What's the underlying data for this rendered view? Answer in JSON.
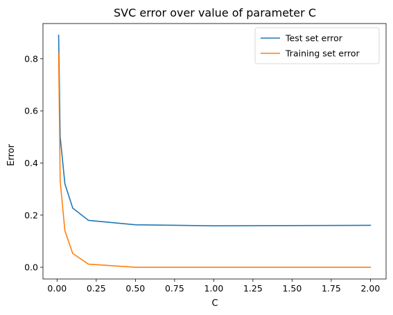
{
  "chart_data": {
    "type": "line",
    "title": "SVC error over value of parameter C",
    "xlabel": "C",
    "ylabel": "Error",
    "xlim": [
      -0.09,
      2.1
    ],
    "ylim": [
      -0.045,
      0.935
    ],
    "x_ticks": [
      {
        "value": 0.0,
        "label": "0.00"
      },
      {
        "value": 0.25,
        "label": "0.25"
      },
      {
        "value": 0.5,
        "label": "0.50"
      },
      {
        "value": 0.75,
        "label": "0.75"
      },
      {
        "value": 1.0,
        "label": "1.00"
      },
      {
        "value": 1.25,
        "label": "1.25"
      },
      {
        "value": 1.5,
        "label": "1.50"
      },
      {
        "value": 1.75,
        "label": "1.75"
      },
      {
        "value": 2.0,
        "label": "2.00"
      }
    ],
    "y_ticks": [
      {
        "value": 0.0,
        "label": "0.0"
      },
      {
        "value": 0.2,
        "label": "0.2"
      },
      {
        "value": 0.4,
        "label": "0.4"
      },
      {
        "value": 0.6,
        "label": "0.6"
      },
      {
        "value": 0.8,
        "label": "0.8"
      }
    ],
    "grid": false,
    "legend_position": "top-right",
    "series": [
      {
        "name": "Test set error",
        "color": "#1f77b4",
        "x": [
          0.01,
          0.02,
          0.05,
          0.1,
          0.2,
          0.5,
          1.0,
          2.0
        ],
        "y": [
          0.89,
          0.5,
          0.32,
          0.227,
          0.18,
          0.163,
          0.159,
          0.161
        ]
      },
      {
        "name": "Training set error",
        "color": "#ff7f0e",
        "x": [
          0.01,
          0.02,
          0.05,
          0.1,
          0.2,
          0.5,
          1.0,
          2.0
        ],
        "y": [
          0.82,
          0.33,
          0.14,
          0.053,
          0.012,
          0.0,
          0.0,
          0.0
        ]
      }
    ]
  }
}
